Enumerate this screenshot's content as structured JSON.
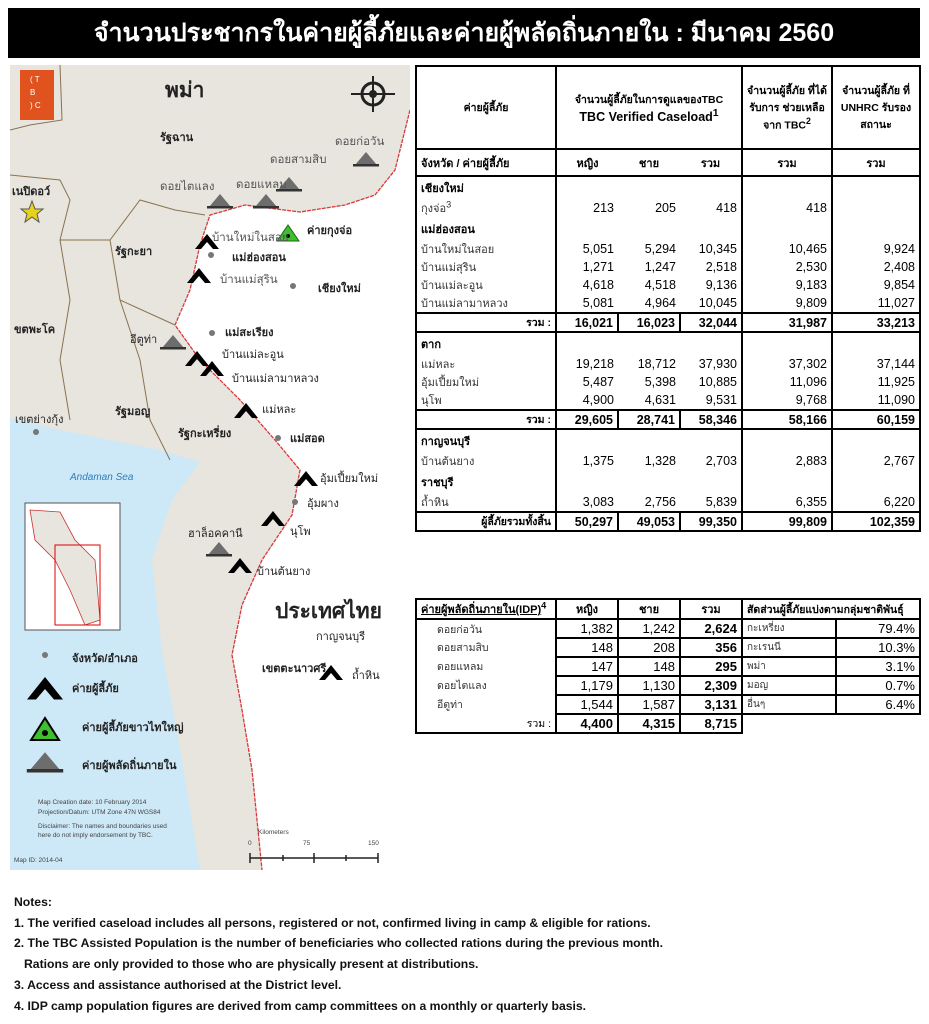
{
  "title": "จำนวนประชากรในค่ายผู้ลี้ภัยและค่ายผู้พลัดถิ่นภายใน : มีนาคม 2560",
  "colors": {
    "land_myanmar": "#e7e5de",
    "land_thailand": "#ffffff",
    "sea": "#cde8f6",
    "border": "#d9383a",
    "logo": "#e0531f"
  },
  "map": {
    "logo_text": "TBC",
    "country_myanmar": "พม่า",
    "country_thailand": "ประเทศไทย",
    "labels": [
      "รัฐฉาน",
      "ดอยก่อวัน",
      "ดอยสามสิบ",
      "ดอยไตแลง",
      "ดอยแหลม",
      "เนปิดอว์",
      "รัฐกะยา",
      "บ้านใหม่ในสอย",
      "ค่ายกุงจ่อ",
      "แม่ฮ่องสอน",
      "บ้านแม่สุริน",
      "เชียงใหม่",
      "ขตพะโค",
      "อีตูท่า",
      "แม่สะเรียง",
      "บ้านแม่ละอูน",
      "บ้านแม่ลามาหลวง",
      "รัฐมอญ",
      "แม่หละ",
      "เขตย่างกุ้ง",
      "รัฐกะเหรี่ยง",
      "แม่สอด",
      "Andaman Sea",
      "อุ้มเปี้ยมใหม่",
      "อุ้มผาง",
      "นุโพ",
      "ฮาล็อคคานี",
      "บ้านต้นยาง",
      "กาญจนบุรี",
      "เขตตะนาวศรี",
      "ถ้ำหิน"
    ],
    "legend": [
      "จังหวัด/อำเภอ",
      "ค่ายผู้ลี้ภัย",
      "ค่ายผู้ลี้ภัยขาวไทใหญ่",
      "ค่ายผู้พลัดถิ่นภายใน"
    ],
    "credits": [
      "Map Creation date: 10 February 2014",
      "Projection/Datum: UTM Zone 47N WGS84",
      "Disclaimer: The names and boundaries used",
      "here do not imply endorsement by TBC.",
      "Map ID: 2014-04"
    ],
    "scale": {
      "unit": "Kilometers",
      "ticks": [
        "0",
        "75",
        "150"
      ]
    }
  },
  "table": {
    "h_camp": "ค่ายผู้ลี้ภัย",
    "h_tbc_th": "จำนวนผู้ลี้ภัยในการดูแลของTBC",
    "h_tbc_en": "TBC Verified Caseload",
    "h_tbc_sup": "1",
    "h_assist": "จำนวนผู้ลี้ภัย ที่ได้รับการ ช่วยเหลือจาก TBC",
    "h_assist_sup": "2",
    "h_unhcr": "จำนวนผู้ลี้ภัย ที่ UNHRC รับรองสถานะ",
    "sub": [
      "จังหวัด / ค่ายผู้ลี้ภัย",
      "หญิง",
      "ชาย",
      "รวม",
      "รวม",
      "รวม"
    ],
    "total_label": "รวม :",
    "grand_label": "ผู้ลี้ภัยรวมทั้งสิ้น",
    "sections": [
      {
        "rows": [
          {
            "p": "เชียงใหม่"
          },
          {
            "c": "กุงจ่อ",
            "sup": "3",
            "v": [
              "213",
              "205",
              "418",
              "418",
              ""
            ]
          },
          {
            "p": "แม่ฮ่องสอน"
          },
          {
            "c": "บ้านใหม่ในสอย",
            "v": [
              "5,051",
              "5,294",
              "10,345",
              "10,465",
              "9,924"
            ]
          },
          {
            "c": "บ้านแม่สุริน",
            "v": [
              "1,271",
              "1,247",
              "2,518",
              "2,530",
              "2,408"
            ]
          },
          {
            "c": "บ้านแม่ละอูน",
            "v": [
              "4,618",
              "4,518",
              "9,136",
              "9,183",
              "9,854"
            ]
          },
          {
            "c": "บ้านแม่ลามาหลวง",
            "v": [
              "5,081",
              "4,964",
              "10,045",
              "9,809",
              "11,027"
            ]
          }
        ],
        "total": [
          "16,021",
          "16,023",
          "32,044",
          "31,987",
          "33,213"
        ]
      },
      {
        "rows": [
          {
            "p": "ตาก"
          },
          {
            "c": "แม่หละ",
            "v": [
              "19,218",
              "18,712",
              "37,930",
              "37,302",
              "37,144"
            ]
          },
          {
            "c": "อุ้มเปี้ยมใหม่",
            "v": [
              "5,487",
              "5,398",
              "10,885",
              "11,096",
              "11,925"
            ]
          },
          {
            "c": "นุโพ",
            "v": [
              "4,900",
              "4,631",
              "9,531",
              "9,768",
              "11,090"
            ]
          }
        ],
        "total": [
          "29,605",
          "28,741",
          "58,346",
          "58,166",
          "60,159"
        ]
      },
      {
        "rows": [
          {
            "p": "กาญจนบุรี"
          },
          {
            "c": "บ้านต้นยาง",
            "v": [
              "1,375",
              "1,328",
              "2,703",
              "2,883",
              "2,767"
            ]
          },
          {
            "p": "ราชบุรี"
          },
          {
            "c": "ถ้ำหิน",
            "v": [
              "3,083",
              "2,756",
              "5,839",
              "6,355",
              "6,220"
            ]
          }
        ],
        "grand": [
          "50,297",
          "49,053",
          "99,350",
          "99,809",
          "102,359"
        ]
      }
    ]
  },
  "idp": {
    "header": "ค่ายผู้พลัดถิ่นภายใน(IDP)",
    "header_sup": "4",
    "cols": [
      "หญิง",
      "ชาย",
      "รวม"
    ],
    "rows": [
      {
        "n": "ดอยก่อวัน",
        "v": [
          "1,382",
          "1,242",
          "2,624"
        ]
      },
      {
        "n": "ดอยสามสิบ",
        "v": [
          "148",
          "208",
          "356"
        ]
      },
      {
        "n": "ดอยแหลม",
        "v": [
          "147",
          "148",
          "295"
        ]
      },
      {
        "n": "ดอยไตแลง",
        "v": [
          "1,179",
          "1,130",
          "2,309"
        ]
      },
      {
        "n": "อีตูท่า",
        "v": [
          "1,544",
          "1,587",
          "3,131"
        ]
      }
    ],
    "total_label": "รวม :",
    "total": [
      "4,400",
      "4,315",
      "8,715"
    ]
  },
  "ethnic": {
    "header": "สัดส่วนผู้ลี้ภัยแบ่งตามกลุ่มชาติพันธุ์",
    "rows": [
      {
        "n": "กะเหรี่ยง",
        "v": "79.4%"
      },
      {
        "n": "กะเรนนี",
        "v": "10.3%"
      },
      {
        "n": "พม่า",
        "v": "3.1%"
      },
      {
        "n": "มอญ",
        "v": "0.7%"
      },
      {
        "n": "อื่นๆ",
        "v": "6.4%"
      }
    ]
  },
  "notes": {
    "title": "Notes:",
    "items": [
      "1. The verified caseload includes all persons, registered or not, confirmed living in camp & eligible for rations.",
      "2. The TBC Assisted Population is the number of beneficiaries who collected rations during the previous month.",
      "    Rations are only provided to those who are physically present at distributions.",
      "3. Access and assistance authorised at the District level.",
      "4. IDP camp population figures are derived from camp committees on a monthly or quarterly basis."
    ]
  }
}
